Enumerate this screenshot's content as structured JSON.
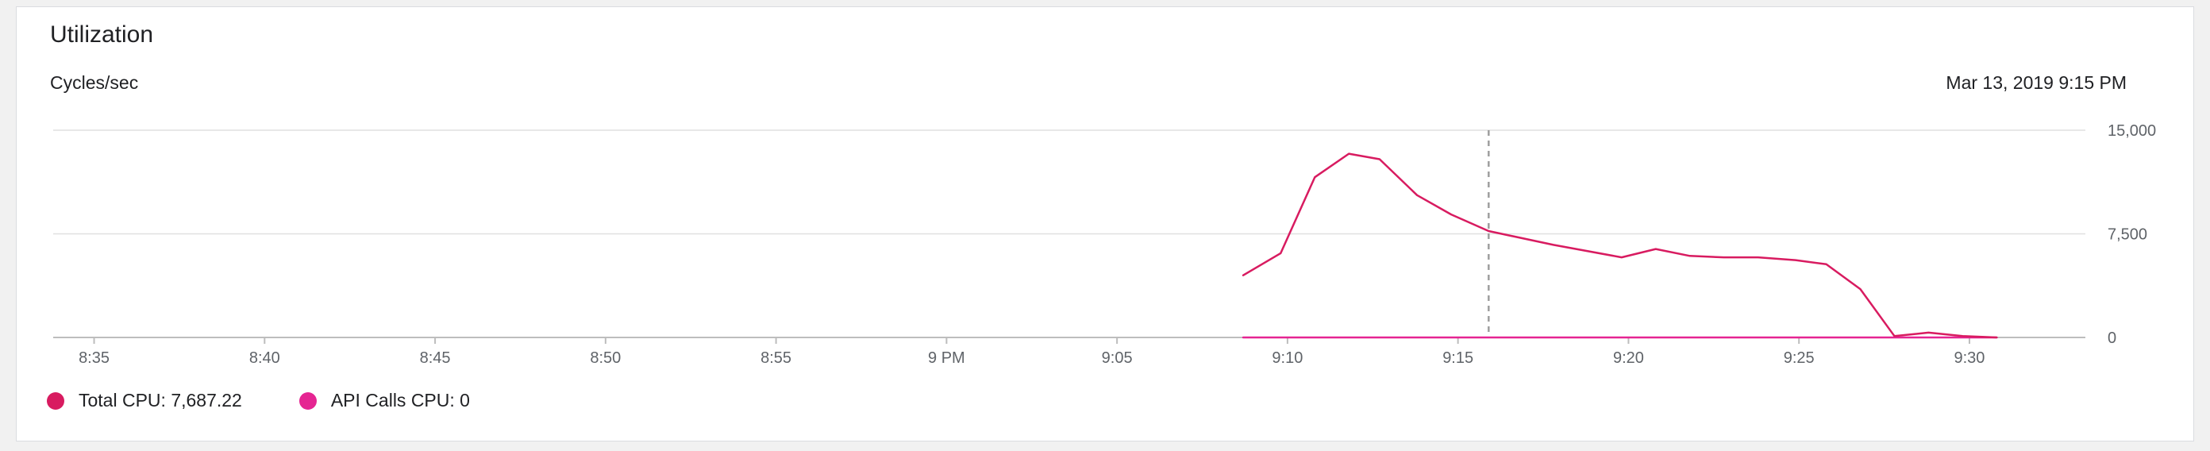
{
  "header": {
    "title": "Utilization",
    "units": "Cycles/sec",
    "timestamp": "Mar 13, 2019 9:15 PM"
  },
  "colors": {
    "total_cpu": "#d81b60",
    "api_calls_cpu": "#e52592",
    "grid": "#e0e0e0",
    "axis": "#bdbdbd",
    "cursor": "#9e9e9e"
  },
  "legend": [
    {
      "label": "Total CPU: 7,687.22",
      "color": "#d81b60"
    },
    {
      "label": "API Calls CPU: 0",
      "color": "#e52592"
    }
  ],
  "chart_data": {
    "type": "line",
    "title": "Utilization",
    "ylabel": "Cycles/sec",
    "xlabel": "",
    "x_range_minutes": [
      -26.2,
      33.4
    ],
    "ylim": [
      0,
      15000
    ],
    "y_ticks": [
      {
        "value": 0,
        "label": "0"
      },
      {
        "value": 7500,
        "label": "7,500"
      },
      {
        "value": 15000,
        "label": "15,000"
      }
    ],
    "x_ticks": [
      {
        "minute": -25,
        "label": "8:35"
      },
      {
        "minute": -20,
        "label": "8:40"
      },
      {
        "minute": -15,
        "label": "8:45"
      },
      {
        "minute": -10,
        "label": "8:50"
      },
      {
        "minute": -5,
        "label": "8:55"
      },
      {
        "minute": 0,
        "label": "9 PM"
      },
      {
        "minute": 5,
        "label": "9:05"
      },
      {
        "minute": 10,
        "label": "9:10"
      },
      {
        "minute": 15,
        "label": "9:15"
      },
      {
        "minute": 20,
        "label": "9:20"
      },
      {
        "minute": 25,
        "label": "9:25"
      },
      {
        "minute": 30,
        "label": "9:30"
      }
    ],
    "cursor_minute": 15.9,
    "grid": true,
    "series": [
      {
        "name": "Total CPU",
        "color": "#d81b60",
        "x": [
          8.7,
          9.8,
          10.8,
          11.8,
          12.7,
          13.8,
          14.8,
          15.9,
          17.8,
          19.8,
          20.8,
          21.8,
          22.8,
          23.8,
          24.9,
          25.8,
          26.8,
          27.8,
          28.8,
          29.8,
          30.8
        ],
        "y": [
          4500,
          6100,
          11600,
          13300,
          12900,
          10300,
          8900,
          7700,
          6700,
          5800,
          6400,
          5900,
          5800,
          5800,
          5600,
          5300,
          3500,
          100,
          350,
          100,
          0
        ]
      },
      {
        "name": "API Calls CPU",
        "color": "#e52592",
        "x": [
          8.7,
          30.8
        ],
        "y": [
          0,
          0
        ]
      }
    ]
  }
}
